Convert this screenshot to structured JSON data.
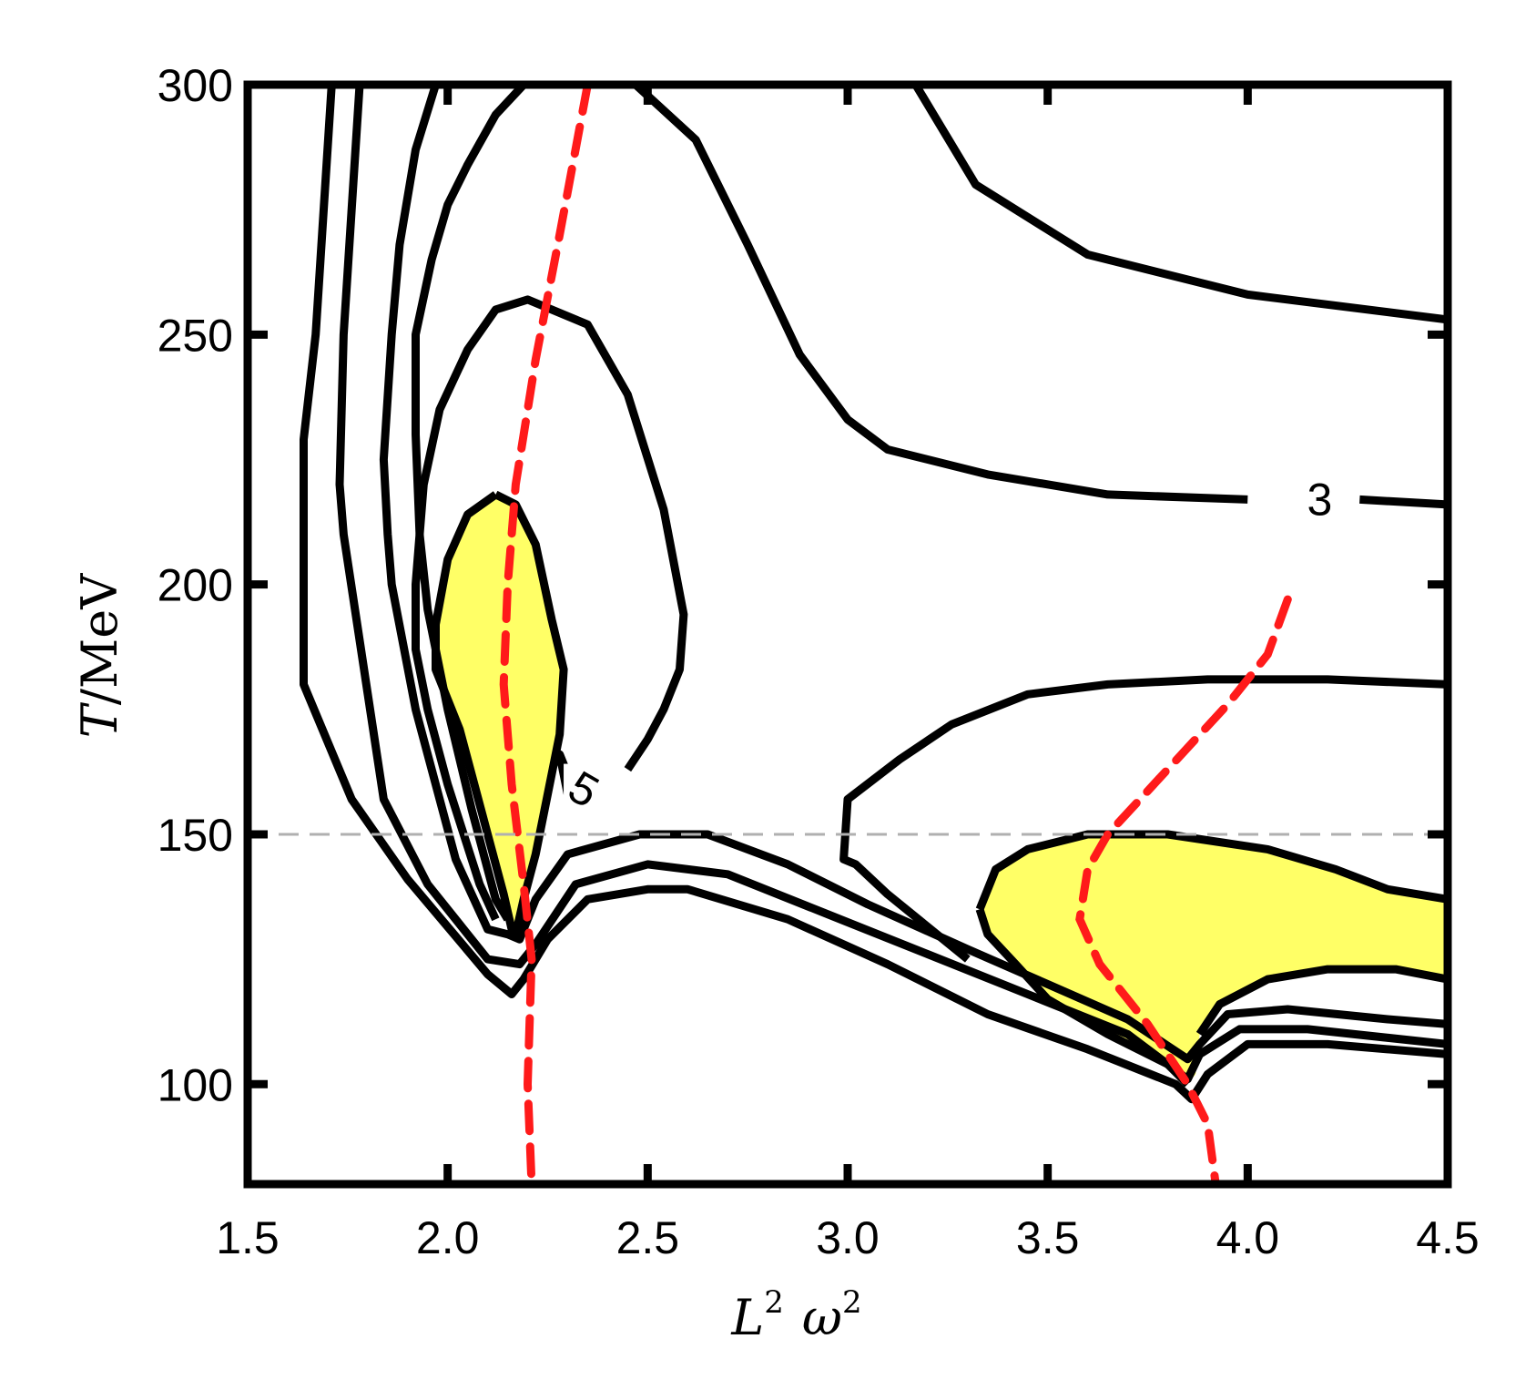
{
  "chart_data": {
    "type": "contour",
    "title": "",
    "xlabel_main": "L",
    "xlabel_sup1": "2",
    "xlabel_omega": "ω",
    "xlabel_sup2": "2",
    "ylabel_var": "T",
    "ylabel_unit": "/MeV",
    "xlim": [
      1.5,
      4.5
    ],
    "ylim": [
      80,
      300
    ],
    "x_ticks": [
      "1.5",
      "2.0",
      "2.5",
      "3.0",
      "3.5",
      "4.0",
      "4.5"
    ],
    "x_tick_values": [
      1.5,
      2.0,
      2.5,
      3.0,
      3.5,
      4.0,
      4.5
    ],
    "y_ticks": [
      "100",
      "150",
      "200",
      "250",
      "300"
    ],
    "y_tick_values": [
      100,
      150,
      200,
      250,
      300
    ],
    "grid": false,
    "reference_line": {
      "y": 150,
      "style": "dashed",
      "color": "#b0b0b0"
    },
    "contour_labels": [
      {
        "text": "3",
        "x": 4.18,
        "y": 217
      },
      {
        "text": "5",
        "x": 2.34,
        "y": 159
      }
    ],
    "highlight_color": "#ffff66",
    "dashed_curve_color": "#ff1a1a",
    "filled_regions": [
      {
        "name": "",
        "points": [
          [
            2.12,
            218
          ],
          [
            2.17,
            216
          ],
          [
            2.22,
            208
          ],
          [
            2.26,
            193
          ],
          [
            2.29,
            183
          ],
          [
            2.28,
            170
          ],
          [
            2.25,
            158
          ],
          [
            2.22,
            146
          ],
          [
            2.19,
            137
          ],
          [
            2.17,
            130
          ],
          [
            2.16,
            131
          ],
          [
            2.14,
            138
          ],
          [
            2.1,
            150
          ],
          [
            2.03,
            171
          ],
          [
            1.97,
            183
          ],
          [
            1.97,
            192
          ],
          [
            2.0,
            205
          ],
          [
            2.05,
            214
          ]
        ]
      },
      {
        "name": "",
        "points": [
          [
            3.33,
            135
          ],
          [
            3.37,
            143
          ],
          [
            3.45,
            147
          ],
          [
            3.6,
            150
          ],
          [
            3.8,
            150
          ],
          [
            4.05,
            147
          ],
          [
            4.22,
            143
          ],
          [
            4.35,
            139
          ],
          [
            4.5,
            137
          ],
          [
            4.5,
            121
          ],
          [
            4.37,
            123
          ],
          [
            4.2,
            123
          ],
          [
            4.05,
            121
          ],
          [
            3.93,
            116
          ],
          [
            3.88,
            110
          ],
          [
            3.87,
            102
          ],
          [
            3.85,
            100
          ],
          [
            3.8,
            104
          ],
          [
            3.65,
            110
          ],
          [
            3.5,
            117
          ],
          [
            3.42,
            124
          ],
          [
            3.35,
            130
          ]
        ]
      }
    ],
    "contour_lines": [
      {
        "name": "",
        "points": [
          [
            1.71,
            300
          ],
          [
            1.67,
            250
          ],
          [
            1.64,
            229
          ],
          [
            1.64,
            180
          ],
          [
            1.76,
            157
          ],
          [
            1.9,
            141
          ],
          [
            2.1,
            122
          ],
          [
            2.16,
            118
          ],
          [
            2.19,
            121
          ],
          [
            2.25,
            129
          ],
          [
            2.35,
            137
          ],
          [
            2.5,
            139
          ],
          [
            2.6,
            139
          ],
          [
            2.85,
            133
          ],
          [
            3.1,
            124
          ],
          [
            3.35,
            114
          ],
          [
            3.6,
            107
          ],
          [
            3.82,
            100
          ],
          [
            3.86,
            97
          ],
          [
            3.9,
            102
          ],
          [
            4.0,
            108
          ],
          [
            4.2,
            108
          ],
          [
            4.5,
            106
          ]
        ]
      },
      {
        "name": "",
        "points": [
          [
            1.78,
            300
          ],
          [
            1.74,
            250
          ],
          [
            1.73,
            220
          ],
          [
            1.74,
            210
          ],
          [
            1.84,
            157
          ],
          [
            1.95,
            140
          ],
          [
            2.1,
            125
          ],
          [
            2.18,
            124
          ],
          [
            2.22,
            128
          ],
          [
            2.32,
            140
          ],
          [
            2.5,
            144
          ],
          [
            2.7,
            142
          ],
          [
            2.95,
            134
          ],
          [
            3.2,
            126
          ],
          [
            3.45,
            118
          ],
          [
            3.7,
            110
          ],
          [
            3.85,
            101
          ],
          [
            3.88,
            106
          ],
          [
            3.98,
            111
          ],
          [
            4.15,
            111
          ],
          [
            4.5,
            108
          ]
        ]
      },
      {
        "name": "",
        "points": [
          [
            1.97,
            300
          ],
          [
            1.92,
            287
          ],
          [
            1.88,
            268
          ],
          [
            1.86,
            250
          ],
          [
            1.84,
            225
          ],
          [
            1.85,
            210
          ],
          [
            1.86,
            200
          ],
          [
            1.92,
            175
          ],
          [
            2.02,
            145
          ],
          [
            2.1,
            131
          ],
          [
            2.15,
            130
          ],
          [
            2.18,
            129
          ],
          [
            2.22,
            137
          ],
          [
            2.3,
            146
          ],
          [
            2.48,
            150
          ],
          [
            2.65,
            150
          ],
          [
            2.85,
            144
          ],
          [
            3.05,
            136
          ],
          [
            3.3,
            127
          ],
          [
            3.5,
            120
          ],
          [
            3.7,
            113
          ],
          [
            3.85,
            105
          ],
          [
            3.88,
            108
          ],
          [
            3.95,
            114
          ],
          [
            4.1,
            115
          ],
          [
            4.35,
            113
          ],
          [
            4.5,
            112
          ]
        ]
      },
      {
        "name": "",
        "points": [
          [
            2.19,
            300
          ],
          [
            2.12,
            294
          ],
          [
            2.05,
            284
          ],
          [
            2.0,
            276
          ],
          [
            1.96,
            265
          ],
          [
            1.92,
            250
          ],
          [
            1.92,
            230
          ],
          [
            1.93,
            210
          ],
          [
            1.95,
            195
          ],
          [
            2.0,
            175
          ],
          [
            2.06,
            155
          ],
          [
            2.12,
            137
          ],
          [
            2.15,
            133
          ]
        ]
      },
      {
        "name": "",
        "points": [
          [
            2.3,
            158
          ],
          [
            2.28,
            166
          ],
          [
            2.3,
            162
          ]
        ]
      },
      {
        "name": "",
        "points": [
          [
            2.45,
            163
          ],
          [
            2.5,
            169
          ],
          [
            2.54,
            175
          ],
          [
            2.58,
            183
          ],
          [
            2.59,
            194
          ],
          [
            2.54,
            215
          ],
          [
            2.45,
            238
          ],
          [
            2.35,
            252
          ],
          [
            2.2,
            257
          ],
          [
            2.12,
            255
          ],
          [
            2.05,
            247
          ],
          [
            1.98,
            235
          ],
          [
            1.94,
            220
          ],
          [
            1.92,
            200
          ],
          [
            1.92,
            187
          ],
          [
            1.95,
            175
          ],
          [
            2.0,
            160
          ],
          [
            2.08,
            140
          ],
          [
            2.12,
            133
          ]
        ]
      },
      {
        "name": "",
        "points": [
          [
            2.12,
            218
          ],
          [
            2.17,
            216
          ],
          [
            2.22,
            208
          ],
          [
            2.26,
            193
          ],
          [
            2.29,
            183
          ],
          [
            2.28,
            170
          ],
          [
            2.25,
            158
          ],
          [
            2.22,
            146
          ],
          [
            2.19,
            137
          ],
          [
            2.17,
            130
          ],
          [
            2.16,
            131
          ],
          [
            2.14,
            138
          ],
          [
            2.1,
            150
          ],
          [
            2.03,
            171
          ],
          [
            1.97,
            183
          ],
          [
            1.97,
            192
          ],
          [
            2.0,
            205
          ],
          [
            2.05,
            214
          ],
          [
            2.12,
            218
          ]
        ]
      },
      {
        "name": "",
        "points": [
          [
            2.36,
            300
          ],
          [
            2.47,
            300
          ],
          [
            2.62,
            289
          ],
          [
            2.75,
            268
          ],
          [
            2.88,
            246
          ],
          [
            3.0,
            233
          ],
          [
            3.1,
            227
          ],
          [
            3.35,
            222
          ],
          [
            3.65,
            218
          ],
          [
            4.0,
            217
          ]
        ]
      },
      {
        "name": "",
        "points": [
          [
            4.28,
            217
          ],
          [
            4.5,
            216
          ]
        ]
      },
      {
        "name": "",
        "points": [
          [
            3.17,
            300
          ],
          [
            3.32,
            280
          ],
          [
            3.6,
            266
          ],
          [
            4.0,
            258
          ],
          [
            4.5,
            253
          ]
        ]
      },
      {
        "name": "",
        "points": [
          [
            4.5,
            180
          ],
          [
            4.2,
            181
          ],
          [
            3.9,
            181
          ],
          [
            3.65,
            180
          ],
          [
            3.45,
            178
          ],
          [
            3.26,
            172
          ],
          [
            3.13,
            165
          ],
          [
            3.0,
            157
          ],
          [
            2.99,
            145
          ],
          [
            3.02,
            144
          ],
          [
            3.1,
            138
          ],
          [
            3.3,
            125
          ]
        ]
      },
      {
        "name": "",
        "points": [
          [
            3.33,
            135
          ],
          [
            3.37,
            143
          ],
          [
            3.45,
            147
          ],
          [
            3.6,
            150
          ],
          [
            3.8,
            150
          ],
          [
            4.05,
            147
          ],
          [
            4.22,
            143
          ],
          [
            4.35,
            139
          ],
          [
            4.5,
            137
          ]
        ]
      },
      {
        "name": "",
        "points": [
          [
            3.33,
            135
          ],
          [
            3.35,
            130
          ],
          [
            3.42,
            124
          ],
          [
            3.5,
            117
          ],
          [
            3.65,
            110
          ],
          [
            3.8,
            104
          ],
          [
            3.85,
            100
          ]
        ]
      },
      {
        "name": "",
        "points": [
          [
            3.88,
            110
          ],
          [
            3.93,
            116
          ],
          [
            4.05,
            121
          ],
          [
            4.2,
            123
          ],
          [
            4.37,
            123
          ],
          [
            4.5,
            121
          ]
        ]
      }
    ],
    "dashed_curves": [
      {
        "name": "",
        "points": [
          [
            2.35,
            300
          ],
          [
            2.28,
            270
          ],
          [
            2.22,
            245
          ],
          [
            2.17,
            220
          ],
          [
            2.15,
            200
          ],
          [
            2.14,
            180
          ],
          [
            2.16,
            160
          ],
          [
            2.19,
            140
          ],
          [
            2.21,
            125
          ],
          [
            2.2,
            100
          ],
          [
            2.21,
            80
          ]
        ]
      },
      {
        "name": "",
        "points": [
          [
            4.1,
            197
          ],
          [
            4.05,
            186
          ],
          [
            3.95,
            176
          ],
          [
            3.8,
            163
          ],
          [
            3.65,
            150
          ],
          [
            3.6,
            143
          ],
          [
            3.58,
            133
          ],
          [
            3.63,
            124
          ],
          [
            3.75,
            112
          ],
          [
            3.85,
            100
          ],
          [
            3.9,
            92
          ],
          [
            3.92,
            80
          ]
        ]
      }
    ]
  }
}
